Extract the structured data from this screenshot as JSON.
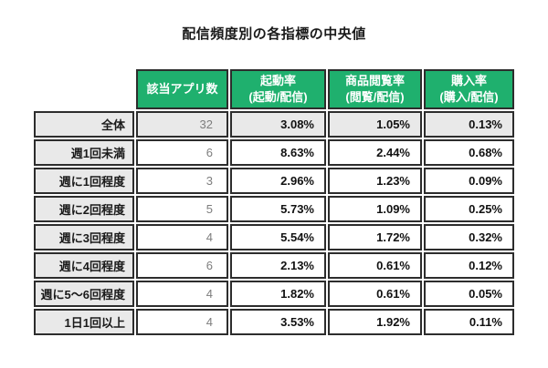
{
  "title": "配信頻度別の各指標の中央値",
  "colors": {
    "header_green": "#1fb06e",
    "highlight_gray": "#e9e9e9",
    "border_dark": "#2d2d2d",
    "count_text_gray": "#7d7d7d"
  },
  "table": {
    "columns": [
      {
        "label": "該当アプリ数",
        "sublabel": ""
      },
      {
        "label": "起動率",
        "sublabel": "(起動/配信)"
      },
      {
        "label": "商品閲覧率",
        "sublabel": "(閲覧/配信)"
      },
      {
        "label": "購入率",
        "sublabel": "(購入/配信)"
      }
    ],
    "rows": [
      {
        "label": "全体",
        "values": [
          "32",
          "3.08%",
          "1.05%",
          "0.13%"
        ]
      },
      {
        "label": "週1回未満",
        "values": [
          "6",
          "8.63%",
          "2.44%",
          "0.68%"
        ]
      },
      {
        "label": "週に1回程度",
        "values": [
          "3",
          "2.96%",
          "1.23%",
          "0.09%"
        ]
      },
      {
        "label": "週に2回程度",
        "values": [
          "5",
          "5.73%",
          "1.09%",
          "0.25%"
        ]
      },
      {
        "label": "週に3回程度",
        "values": [
          "4",
          "5.54%",
          "1.72%",
          "0.32%"
        ]
      },
      {
        "label": "週に4回程度",
        "values": [
          "6",
          "2.13%",
          "0.61%",
          "0.12%"
        ]
      },
      {
        "label": "週に5〜6回程度",
        "values": [
          "4",
          "1.82%",
          "0.61%",
          "0.05%"
        ]
      },
      {
        "label": "1日1回以上",
        "values": [
          "4",
          "3.53%",
          "1.92%",
          "0.11%"
        ]
      }
    ]
  },
  "chart_data": {
    "type": "table",
    "title": "配信頻度別の各指標の中央値",
    "categories": [
      "全体",
      "週1回未満",
      "週に1回程度",
      "週に2回程度",
      "週に3回程度",
      "週に4回程度",
      "週に5〜6回程度",
      "1日1回以上"
    ],
    "series": [
      {
        "name": "該当アプリ数",
        "values": [
          32,
          6,
          3,
          5,
          4,
          6,
          4,
          4
        ]
      },
      {
        "name": "起動率(起動/配信)",
        "values": [
          3.08,
          8.63,
          2.96,
          5.73,
          5.54,
          2.13,
          1.82,
          3.53
        ],
        "unit": "%"
      },
      {
        "name": "商品閲覧率(閲覧/配信)",
        "values": [
          1.05,
          2.44,
          1.23,
          1.09,
          1.72,
          0.61,
          0.61,
          1.92
        ],
        "unit": "%"
      },
      {
        "name": "購入率(購入/配信)",
        "values": [
          0.13,
          0.68,
          0.09,
          0.25,
          0.32,
          0.12,
          0.05,
          0.11
        ],
        "unit": "%"
      }
    ],
    "layout_hints": {
      "header_background": "#1fb06e",
      "first_row_highlighted": true,
      "label_column_background": "#e9e9e9"
    }
  }
}
